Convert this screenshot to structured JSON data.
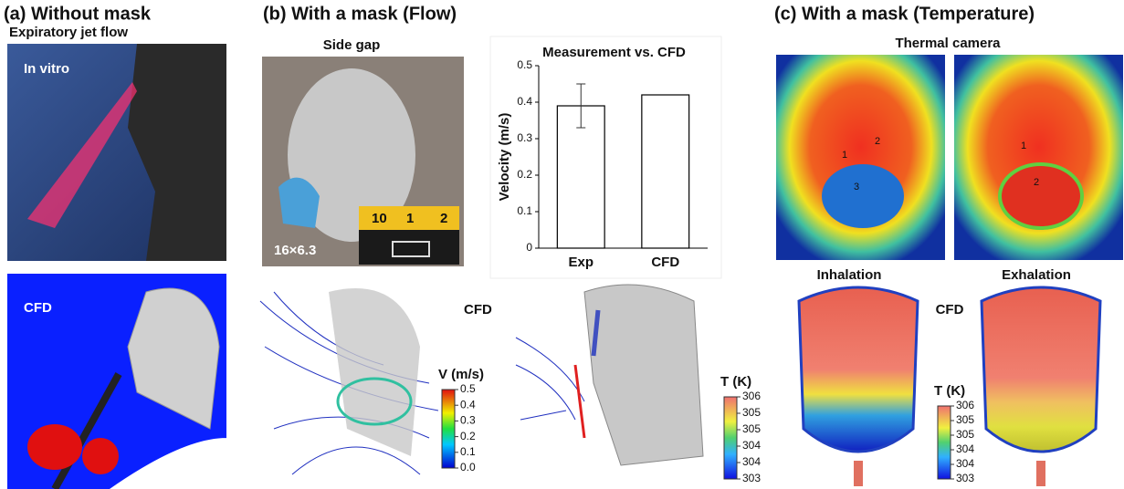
{
  "panel_a": {
    "title": "(a) Without mask",
    "subtitle": "Expiratory jet flow",
    "photo_label": "In vitro",
    "cfd_label": "CFD"
  },
  "panel_b": {
    "title": "(b) With a mask (Flow)",
    "photo_title": "Side gap",
    "gap_label": "16×6.3",
    "ruler_labels": [
      "10",
      "1",
      "2"
    ],
    "cfd_label": "CFD",
    "velocity_colorbar": {
      "title": "V (m/s)",
      "ticks": [
        0.5,
        0.4,
        0.3,
        0.2,
        0.1,
        {
          "value": 0,
          "label": "0.0"
        }
      ]
    },
    "temperature_colorbar": {
      "title": "T (K)",
      "ticks": [
        306,
        {
          "value": 305.4,
          "label": "305"
        },
        {
          "value": 304.8,
          "label": "305"
        },
        {
          "value": 304.2,
          "label": "304"
        },
        {
          "value": 303.6,
          "label": "304"
        },
        303
      ]
    }
  },
  "panel_c": {
    "title": "(c) With a mask (Temperature)",
    "photo_title": "Thermal camera",
    "left_markers": [
      "1",
      "2",
      "3"
    ],
    "right_markers": [
      "1",
      "2"
    ],
    "inhalation": "Inhalation",
    "exhalation": "Exhalation",
    "cfd_label": "CFD",
    "temperature_colorbar": {
      "title": "T (K)",
      "ticks": [
        306,
        {
          "value": 305.4,
          "label": "305"
        },
        {
          "value": 304.8,
          "label": "305"
        },
        {
          "value": 304.2,
          "label": "304"
        },
        {
          "value": 303.6,
          "label": "304"
        },
        303
      ]
    }
  },
  "chart_data": {
    "type": "bar",
    "title": "Measurement vs. CFD",
    "y_label": "Velocity (m/s)",
    "categories": [
      "Exp",
      "CFD"
    ],
    "values": [
      0.39,
      0.42
    ],
    "errors": [
      0.06,
      null
    ],
    "color": "#ffffff",
    "edge_color": "#000000",
    "ylim": [
      0,
      0.5
    ],
    "yticks": [
      0,
      0.1,
      0.2,
      0.3,
      0.4,
      0.5
    ]
  }
}
